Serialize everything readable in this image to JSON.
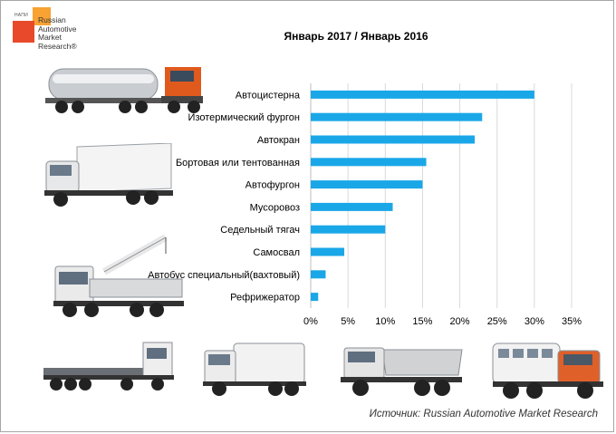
{
  "logo": {
    "small_text": "НАПИ",
    "line1": "Russian",
    "line2": "Automotive",
    "line3": "Market",
    "line4": "Research®",
    "colors": {
      "orange": "#f7a233",
      "red": "#e8492a"
    }
  },
  "source": "Источник: Russian Automotive Market Research",
  "chart_data": {
    "type": "bar",
    "orientation": "horizontal",
    "title": "Январь 2017 / Январь 2016",
    "categories": [
      "Автоцистерна",
      "Изотермический фургон",
      "Автокран",
      "Бортовая или тентованная",
      "Автофургон",
      "Мусоровоз",
      "Седельный тягач",
      "Самосвал",
      "Автобус специальный(вахтовый)",
      "Рефрижератор"
    ],
    "values": [
      30,
      23,
      22,
      15.5,
      15,
      11,
      10,
      4.5,
      2,
      1
    ],
    "value_unit": "%",
    "xlim": [
      0,
      35
    ],
    "xticks": [
      "0%",
      "5%",
      "10%",
      "15%",
      "20%",
      "25%",
      "30%",
      "35%"
    ],
    "grid": "vertical",
    "bar_color": "#1aa7e8"
  },
  "images": [
    "tanker-truck-icon",
    "refrigerated-van-truck-icon",
    "crane-truck-icon",
    "flatbed-truck-icon",
    "garbage-truck-icon",
    "dump-truck-icon",
    "shift-bus-truck-icon"
  ]
}
